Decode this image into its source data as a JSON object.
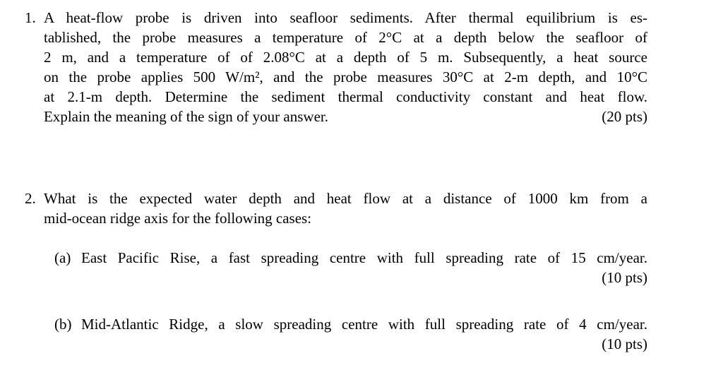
{
  "page": {
    "background_color": "#ffffff",
    "text_color": "#000000"
  },
  "problems": [
    {
      "number": "1.",
      "points": "(20 pts)",
      "lines": [
        "A heat-flow probe is driven into seafloor sediments. After thermal equilibrium is es-",
        "tablished, the probe measures a temperature of 2°C at a depth below the seafloor of",
        "2 m, and a temperature of of 2.08°C at a depth of 5 m. Subsequently, a heat source",
        "on the probe applies 500 W/m², and the probe measures 30°C at 2-m depth, and 10°C",
        "at 2.1-m depth. Determine the sediment thermal conductivity constant and heat flow."
      ],
      "last_line": "Explain the meaning of the sign of your answer."
    },
    {
      "number": "2.",
      "lines": [
        "What is the expected water depth and heat flow at a distance of 1000 km from a"
      ],
      "last_line": "mid-ocean ridge axis for the following cases:",
      "subitems": [
        {
          "label": "(a)",
          "text": "East Pacific Rise, a fast spreading centre with full spreading rate of 15 cm/year.",
          "points": "(10 pts)"
        },
        {
          "label": "(b)",
          "text": "Mid-Atlantic Ridge, a slow spreading centre with full spreading rate of 4 cm/year.",
          "points": "(10 pts)"
        }
      ]
    }
  ]
}
